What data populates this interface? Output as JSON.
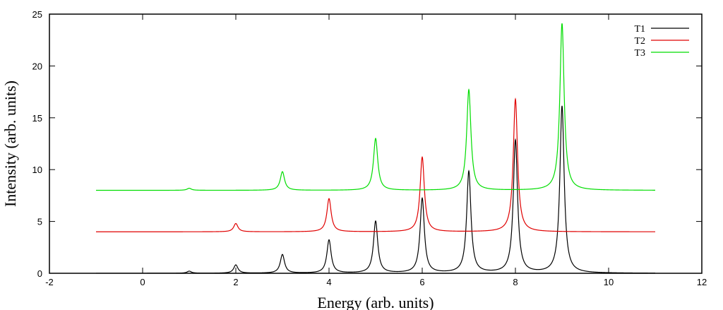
{
  "chart_data": {
    "type": "line",
    "title": "",
    "xlabel": "Energy (arb. units)",
    "ylabel": "Intensity (arb. units)",
    "xlim": [
      -2,
      12
    ],
    "ylim": [
      0,
      25
    ],
    "xticks": [
      -2,
      0,
      2,
      4,
      6,
      8,
      10,
      12
    ],
    "yticks": [
      0,
      5,
      10,
      15,
      20,
      25
    ],
    "x_range_of_curves": [
      -1,
      11
    ],
    "grid": false,
    "legend_position": "top-right",
    "series": [
      {
        "name": "T1",
        "color": "#000000",
        "baseline": 0,
        "peaks": [
          {
            "x": 1,
            "y": 0.2
          },
          {
            "x": 2,
            "y": 0.8
          },
          {
            "x": 3,
            "y": 1.8
          },
          {
            "x": 4,
            "y": 3.2
          },
          {
            "x": 5,
            "y": 5.0
          },
          {
            "x": 6,
            "y": 7.2
          },
          {
            "x": 7,
            "y": 9.8
          },
          {
            "x": 8,
            "y": 12.8
          },
          {
            "x": 9,
            "y": 16.1
          }
        ]
      },
      {
        "name": "T2",
        "color": "#e00000",
        "baseline": 4,
        "peaks": [
          {
            "x": 2,
            "y": 4.8
          },
          {
            "x": 4,
            "y": 7.2
          },
          {
            "x": 6,
            "y": 11.2
          },
          {
            "x": 8,
            "y": 16.8
          }
        ]
      },
      {
        "name": "T3",
        "color": "#00dd00",
        "baseline": 8,
        "peaks": [
          {
            "x": 1,
            "y": 8.2
          },
          {
            "x": 3,
            "y": 9.8
          },
          {
            "x": 5,
            "y": 13.0
          },
          {
            "x": 7,
            "y": 17.7
          },
          {
            "x": 9,
            "y": 24.1
          }
        ]
      }
    ]
  }
}
